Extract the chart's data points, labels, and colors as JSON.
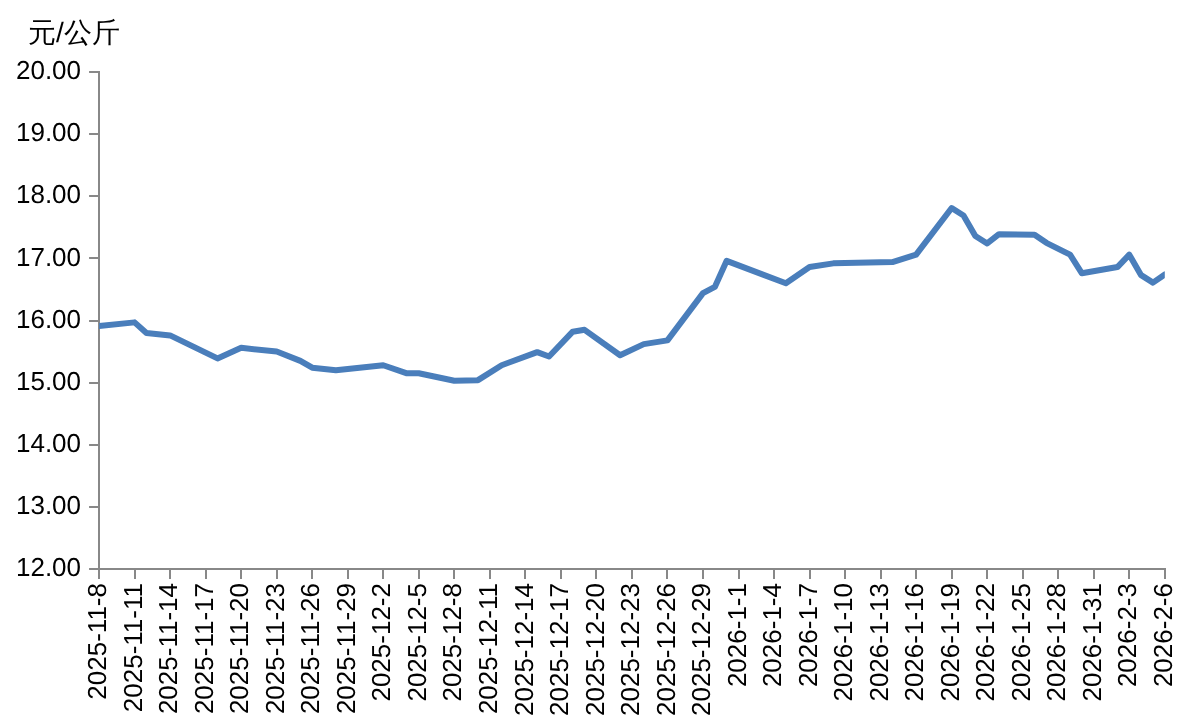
{
  "chart_data": {
    "type": "line",
    "ylabel": "元/公斤",
    "xlim": [
      "2025-11-08",
      "2026-02-06"
    ],
    "xticks": [
      {
        "value": "2025-11-08",
        "label": "2025-11-8"
      },
      {
        "value": "2025-11-11",
        "label": "2025-11-11"
      },
      {
        "value": "2025-11-14",
        "label": "2025-11-14"
      },
      {
        "value": "2025-11-17",
        "label": "2025-11-17"
      },
      {
        "value": "2025-11-20",
        "label": "2025-11-20"
      },
      {
        "value": "2025-11-23",
        "label": "2025-11-23"
      },
      {
        "value": "2025-11-26",
        "label": "2025-11-26"
      },
      {
        "value": "2025-11-29",
        "label": "2025-11-29"
      },
      {
        "value": "2025-12-02",
        "label": "2025-12-2"
      },
      {
        "value": "2025-12-05",
        "label": "2025-12-5"
      },
      {
        "value": "2025-12-08",
        "label": "2025-12-8"
      },
      {
        "value": "2025-12-11",
        "label": "2025-12-11"
      },
      {
        "value": "2025-12-14",
        "label": "2025-12-14"
      },
      {
        "value": "2025-12-17",
        "label": "2025-12-17"
      },
      {
        "value": "2025-12-20",
        "label": "2025-12-20"
      },
      {
        "value": "2025-12-23",
        "label": "2025-12-23"
      },
      {
        "value": "2025-12-26",
        "label": "2025-12-26"
      },
      {
        "value": "2025-12-29",
        "label": "2025-12-29"
      },
      {
        "value": "2026-01-01",
        "label": "2026-1-1"
      },
      {
        "value": "2026-01-04",
        "label": "2026-1-4"
      },
      {
        "value": "2026-01-07",
        "label": "2026-1-7"
      },
      {
        "value": "2026-01-10",
        "label": "2026-1-10"
      },
      {
        "value": "2026-01-13",
        "label": "2026-1-13"
      },
      {
        "value": "2026-01-16",
        "label": "2026-1-16"
      },
      {
        "value": "2026-01-19",
        "label": "2026-1-19"
      },
      {
        "value": "2026-01-22",
        "label": "2026-1-22"
      },
      {
        "value": "2026-01-25",
        "label": "2026-1-25"
      },
      {
        "value": "2026-01-28",
        "label": "2026-1-28"
      },
      {
        "value": "2026-01-31",
        "label": "2026-1-31"
      },
      {
        "value": "2026-02-03",
        "label": "2026-2-3"
      },
      {
        "value": "2026-02-06",
        "label": "2026-2-6"
      }
    ],
    "ylim": [
      12,
      20
    ],
    "yticks": [
      {
        "value": 12,
        "label": "12.00"
      },
      {
        "value": 13,
        "label": "13.00"
      },
      {
        "value": 14,
        "label": "14.00"
      },
      {
        "value": 15,
        "label": "15.00"
      },
      {
        "value": 16,
        "label": "16.00"
      },
      {
        "value": 17,
        "label": "17.00"
      },
      {
        "value": 18,
        "label": "18.00"
      },
      {
        "value": 19,
        "label": "19.00"
      },
      {
        "value": 20,
        "label": "20.00"
      }
    ],
    "grid": false,
    "legend": false,
    "marker": "none",
    "line_style": "solid",
    "x": [
      "2025-11-08",
      "2025-11-11",
      "2025-11-12",
      "2025-11-14",
      "2025-11-18",
      "2025-11-20",
      "2025-11-23",
      "2025-11-25",
      "2025-11-26",
      "2025-11-28",
      "2025-12-02",
      "2025-12-04",
      "2025-12-05",
      "2025-12-08",
      "2025-12-10",
      "2025-12-12",
      "2025-12-15",
      "2025-12-16",
      "2025-12-18",
      "2025-12-19",
      "2025-12-22",
      "2025-12-24",
      "2025-12-26",
      "2025-12-29",
      "2025-12-30",
      "2025-12-31",
      "2026-01-05",
      "2026-01-07",
      "2026-01-09",
      "2026-01-14",
      "2026-01-16",
      "2026-01-19",
      "2026-01-20",
      "2026-01-21",
      "2026-01-22",
      "2026-01-23",
      "2026-01-26",
      "2026-01-27",
      "2026-01-29",
      "2026-01-30",
      "2026-02-02",
      "2026-02-03",
      "2026-02-04",
      "2026-02-05",
      "2026-02-06"
    ],
    "series": [
      {
        "color": "#4a7ebb",
        "values": [
          15.91,
          15.97,
          15.8,
          15.76,
          15.39,
          15.56,
          15.5,
          15.35,
          15.24,
          15.2,
          15.28,
          15.15,
          15.15,
          15.03,
          15.04,
          15.28,
          15.49,
          15.42,
          15.82,
          15.85,
          15.44,
          15.62,
          15.68,
          16.44,
          16.54,
          16.96,
          16.6,
          16.86,
          16.92,
          16.94,
          17.06,
          17.81,
          17.69,
          17.36,
          17.24,
          17.39,
          17.38,
          17.25,
          17.06,
          16.76,
          16.86,
          17.06,
          16.73,
          16.61,
          16.74
        ]
      }
    ]
  }
}
